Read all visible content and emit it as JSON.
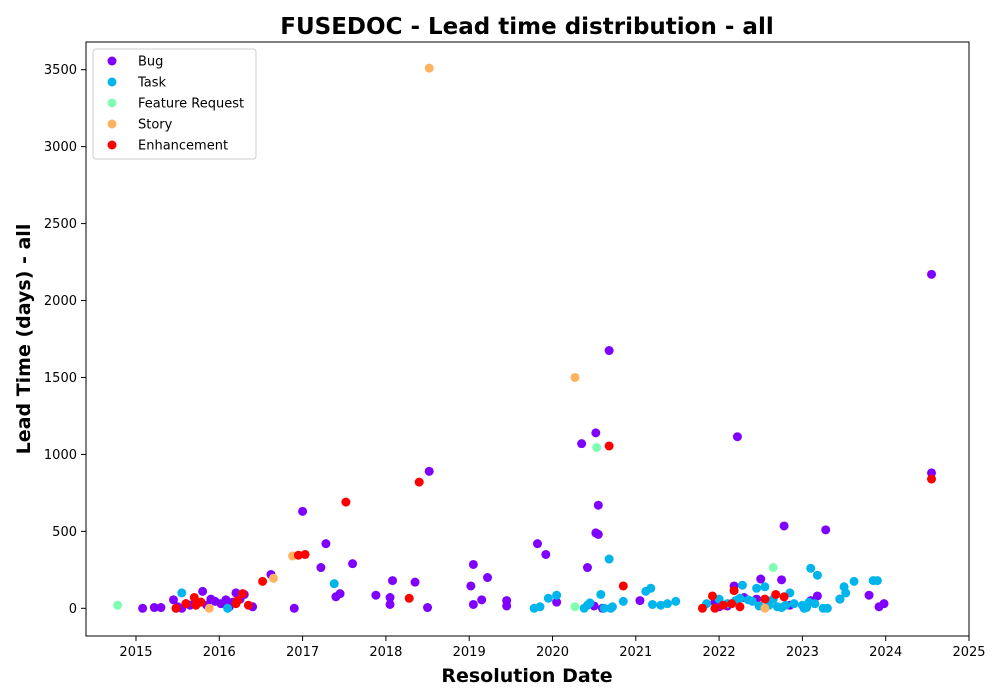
{
  "chart_data": {
    "type": "scatter",
    "title": "FUSEDOC - Lead time distribution - all",
    "xlabel": "Resolution Date",
    "ylabel": "Lead Time (days) - all",
    "xlim": [
      2014.4,
      2025.0
    ],
    "ylim": [
      -180,
      3680
    ],
    "xticks": [
      "2015",
      "2016",
      "2017",
      "2018",
      "2019",
      "2020",
      "2021",
      "2022",
      "2023",
      "2024",
      "2025"
    ],
    "yticks": [
      0,
      500,
      1000,
      1500,
      2000,
      2500,
      3000,
      3500
    ],
    "grid": false,
    "legend_position": "top-left",
    "series": [
      {
        "name": "Bug",
        "color": "#8000ff",
        "points": [
          [
            2015.08,
            0
          ],
          [
            2015.22,
            5
          ],
          [
            2015.3,
            5
          ],
          [
            2015.45,
            55
          ],
          [
            2015.5,
            10
          ],
          [
            2015.55,
            0
          ],
          [
            2015.6,
            30
          ],
          [
            2015.65,
            20
          ],
          [
            2015.72,
            40
          ],
          [
            2015.8,
            110
          ],
          [
            2015.85,
            20
          ],
          [
            2015.9,
            60
          ],
          [
            2015.95,
            45
          ],
          [
            2016.02,
            30
          ],
          [
            2016.08,
            55
          ],
          [
            2016.12,
            10
          ],
          [
            2016.16,
            40
          ],
          [
            2016.2,
            100
          ],
          [
            2016.25,
            60
          ],
          [
            2016.3,
            90
          ],
          [
            2016.4,
            10
          ],
          [
            2016.62,
            220
          ],
          [
            2016.9,
            0
          ],
          [
            2017.0,
            630
          ],
          [
            2017.22,
            265
          ],
          [
            2017.28,
            420
          ],
          [
            2017.4,
            75
          ],
          [
            2017.45,
            95
          ],
          [
            2017.6,
            290
          ],
          [
            2017.88,
            85
          ],
          [
            2018.05,
            25
          ],
          [
            2018.08,
            180
          ],
          [
            2018.05,
            70
          ],
          [
            2018.35,
            170
          ],
          [
            2018.5,
            5
          ],
          [
            2018.52,
            890
          ],
          [
            2019.02,
            145
          ],
          [
            2019.05,
            285
          ],
          [
            2019.05,
            25
          ],
          [
            2019.15,
            55
          ],
          [
            2019.22,
            200
          ],
          [
            2019.45,
            50
          ],
          [
            2019.45,
            15
          ],
          [
            2019.82,
            420
          ],
          [
            2019.92,
            350
          ],
          [
            2020.05,
            40
          ],
          [
            2020.35,
            1070
          ],
          [
            2020.42,
            265
          ],
          [
            2020.5,
            15
          ],
          [
            2020.52,
            1140
          ],
          [
            2020.52,
            490
          ],
          [
            2020.55,
            670
          ],
          [
            2020.55,
            480
          ],
          [
            2020.6,
            0
          ],
          [
            2020.68,
            1675
          ],
          [
            2021.05,
            50
          ],
          [
            2021.95,
            40
          ],
          [
            2022.0,
            10
          ],
          [
            2022.1,
            15
          ],
          [
            2022.18,
            145
          ],
          [
            2022.22,
            1115
          ],
          [
            2022.3,
            70
          ],
          [
            2022.45,
            60
          ],
          [
            2022.5,
            190
          ],
          [
            2022.6,
            45
          ],
          [
            2022.75,
            185
          ],
          [
            2022.78,
            535
          ],
          [
            2022.85,
            20
          ],
          [
            2023.1,
            50
          ],
          [
            2023.18,
            80
          ],
          [
            2023.28,
            510
          ],
          [
            2023.45,
            60
          ],
          [
            2023.8,
            85
          ],
          [
            2023.92,
            10
          ],
          [
            2023.98,
            30
          ],
          [
            2024.55,
            2170
          ],
          [
            2024.55,
            880
          ]
        ]
      },
      {
        "name": "Task",
        "color": "#00b5eb",
        "points": [
          [
            2015.55,
            100
          ],
          [
            2016.1,
            0
          ],
          [
            2017.38,
            160
          ],
          [
            2019.78,
            0
          ],
          [
            2019.85,
            10
          ],
          [
            2019.95,
            65
          ],
          [
            2020.05,
            85
          ],
          [
            2020.38,
            0
          ],
          [
            2020.42,
            20
          ],
          [
            2020.45,
            35
          ],
          [
            2020.58,
            90
          ],
          [
            2020.62,
            0
          ],
          [
            2020.68,
            320
          ],
          [
            2020.7,
            0
          ],
          [
            2020.72,
            10
          ],
          [
            2020.85,
            45
          ],
          [
            2021.12,
            110
          ],
          [
            2021.18,
            130
          ],
          [
            2021.2,
            25
          ],
          [
            2021.3,
            20
          ],
          [
            2021.38,
            30
          ],
          [
            2021.48,
            45
          ],
          [
            2021.85,
            30
          ],
          [
            2022.0,
            60
          ],
          [
            2022.1,
            30
          ],
          [
            2022.2,
            50
          ],
          [
            2022.25,
            65
          ],
          [
            2022.28,
            150
          ],
          [
            2022.35,
            55
          ],
          [
            2022.4,
            45
          ],
          [
            2022.45,
            130
          ],
          [
            2022.48,
            15
          ],
          [
            2022.55,
            140
          ],
          [
            2022.6,
            20
          ],
          [
            2022.65,
            60
          ],
          [
            2022.7,
            10
          ],
          [
            2022.75,
            5
          ],
          [
            2022.8,
            20
          ],
          [
            2022.85,
            100
          ],
          [
            2022.9,
            30
          ],
          [
            2023.0,
            20
          ],
          [
            2023.02,
            0
          ],
          [
            2023.05,
            5
          ],
          [
            2023.08,
            40
          ],
          [
            2023.1,
            260
          ],
          [
            2023.15,
            30
          ],
          [
            2023.18,
            215
          ],
          [
            2023.25,
            0
          ],
          [
            2023.3,
            0
          ],
          [
            2023.45,
            60
          ],
          [
            2023.5,
            140
          ],
          [
            2023.52,
            100
          ],
          [
            2023.62,
            175
          ],
          [
            2023.85,
            180
          ],
          [
            2023.9,
            180
          ]
        ]
      },
      {
        "name": "Feature Request",
        "color": "#80ffb4",
        "points": [
          [
            2014.78,
            20
          ],
          [
            2020.27,
            10
          ],
          [
            2020.53,
            1045
          ],
          [
            2022.65,
            265
          ]
        ]
      },
      {
        "name": "Story",
        "color": "#ffb360",
        "points": [
          [
            2015.88,
            0
          ],
          [
            2016.88,
            340
          ],
          [
            2016.65,
            195
          ],
          [
            2018.52,
            3510
          ],
          [
            2020.27,
            1500
          ],
          [
            2022.55,
            0
          ]
        ]
      },
      {
        "name": "Enhancement",
        "color": "#ff0000",
        "points": [
          [
            2015.48,
            0
          ],
          [
            2015.6,
            30
          ],
          [
            2015.7,
            70
          ],
          [
            2015.72,
            20
          ],
          [
            2015.78,
            40
          ],
          [
            2016.2,
            30
          ],
          [
            2016.22,
            50
          ],
          [
            2016.28,
            95
          ],
          [
            2016.35,
            20
          ],
          [
            2016.52,
            175
          ],
          [
            2016.95,
            345
          ],
          [
            2017.03,
            350
          ],
          [
            2017.52,
            690
          ],
          [
            2018.28,
            65
          ],
          [
            2018.4,
            820
          ],
          [
            2020.68,
            1055
          ],
          [
            2020.85,
            145
          ],
          [
            2021.8,
            0
          ],
          [
            2021.92,
            80
          ],
          [
            2021.95,
            0
          ],
          [
            2022.05,
            20
          ],
          [
            2022.15,
            30
          ],
          [
            2022.18,
            115
          ],
          [
            2022.25,
            10
          ],
          [
            2022.55,
            60
          ],
          [
            2022.68,
            90
          ],
          [
            2022.78,
            75
          ],
          [
            2024.55,
            840
          ]
        ]
      }
    ]
  }
}
